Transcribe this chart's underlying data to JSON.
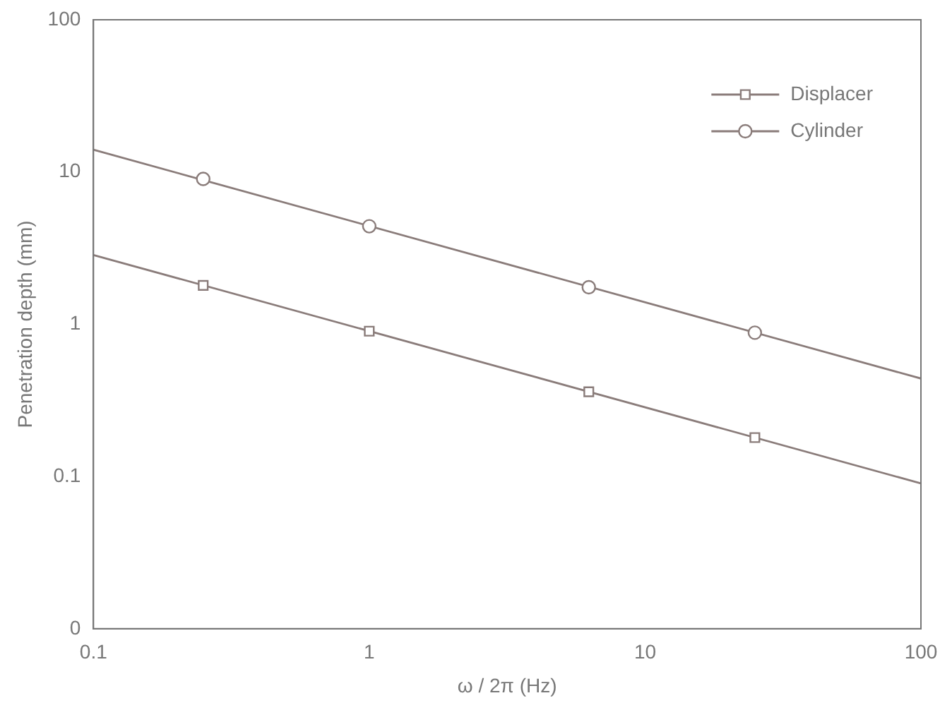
{
  "chart_data": {
    "type": "line",
    "xlabel": "ω / 2π (Hz)",
    "ylabel": "Penetration depth (mm)",
    "log": "xy",
    "xlim": [
      0.1,
      100
    ],
    "xticks": [
      0.1,
      1,
      10,
      100
    ],
    "ylim": [
      0.01,
      100
    ],
    "yticks": [
      {
        "value": 0.01,
        "label": "0"
      },
      0.1,
      1,
      10,
      100
    ],
    "grid": false,
    "legend": "top right",
    "series": [
      {
        "type": "line",
        "color": "#8a7c7a",
        "marker": "none",
        "x": [
          0.1,
          100
        ],
        "values": [
          2.85,
          0.09
        ]
      },
      {
        "type": "scatter",
        "name": "Displacer",
        "color": "#8a7c7a",
        "marker": "square",
        "x": [
          0.25,
          1,
          6.25,
          25
        ],
        "values": [
          1.8,
          0.9,
          0.36,
          0.18
        ]
      },
      {
        "type": "line",
        "color": "#8a7c7a",
        "marker": "none",
        "x": [
          0.1,
          100
        ],
        "values": [
          14,
          0.44
        ]
      },
      {
        "type": "scatter",
        "name": "Cylinder",
        "color": "#8a7c7a",
        "marker": "circle",
        "x": [
          0.25,
          1,
          6.25,
          25
        ],
        "values": [
          9,
          4.4,
          1.75,
          0.88
        ]
      }
    ]
  }
}
